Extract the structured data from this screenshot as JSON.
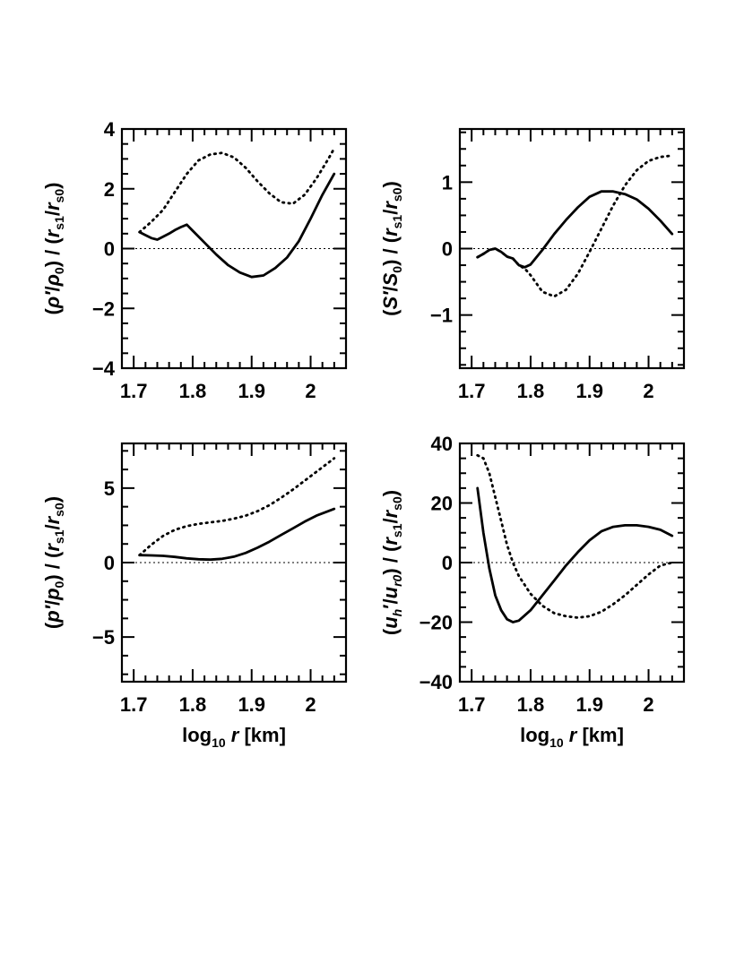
{
  "chart_data": [
    {
      "id": "density",
      "type": "line",
      "ylabel": "(ρ′/ρ₀) / (r_s1/r_s0)",
      "ylabel_parts": {
        "open": "(",
        "num": "ρ′",
        "slash": "/",
        "den": "ρ",
        "den_sub": "0",
        "close": ")",
        "mid": " / ",
        "r1": "r",
        "r1_sub": "s1",
        "r0": "r",
        "r0_sub": "s0"
      },
      "xlabel": "",
      "xlim": [
        1.68,
        2.06
      ],
      "ylim": [
        -4,
        4
      ],
      "xticks": [
        1.7,
        1.8,
        1.9,
        2.0
      ],
      "xtick_labels": [
        "1.7",
        "1.8",
        "1.9",
        "2"
      ],
      "yticks": [
        -4,
        -2,
        0,
        2,
        4
      ],
      "ytick_labels": [
        "−4",
        "−2",
        "0",
        "2",
        "4"
      ],
      "series": [
        {
          "name": "solid",
          "style": "solid",
          "x": [
            1.71,
            1.72,
            1.73,
            1.74,
            1.75,
            1.76,
            1.77,
            1.78,
            1.79,
            1.8,
            1.82,
            1.84,
            1.86,
            1.88,
            1.9,
            1.92,
            1.94,
            1.96,
            1.98,
            2.0,
            2.02,
            2.04
          ],
          "y": [
            0.55,
            0.45,
            0.35,
            0.3,
            0.4,
            0.5,
            0.62,
            0.72,
            0.8,
            0.6,
            0.2,
            -0.2,
            -0.55,
            -0.8,
            -0.95,
            -0.9,
            -0.65,
            -0.3,
            0.25,
            1.0,
            1.8,
            2.5
          ]
        },
        {
          "name": "dotted",
          "style": "dotted",
          "x": [
            1.71,
            1.73,
            1.75,
            1.77,
            1.79,
            1.81,
            1.83,
            1.85,
            1.87,
            1.89,
            1.91,
            1.93,
            1.95,
            1.97,
            1.99,
            2.01,
            2.03,
            2.04
          ],
          "y": [
            0.55,
            0.9,
            1.3,
            1.9,
            2.5,
            2.95,
            3.15,
            3.2,
            3.05,
            2.7,
            2.25,
            1.85,
            1.55,
            1.5,
            1.8,
            2.35,
            3.0,
            3.35
          ]
        }
      ]
    },
    {
      "id": "entropy",
      "type": "line",
      "ylabel": "(S′/S₀) / (r_s1/r_s0)",
      "ylabel_parts": {
        "open": "(",
        "num": "S′",
        "slash": "/",
        "den": "S",
        "den_sub": "0",
        "close": ")",
        "mid": " / ",
        "r1": "r",
        "r1_sub": "s1",
        "r0": "r",
        "r0_sub": "s0"
      },
      "xlabel": "",
      "xlim": [
        1.68,
        2.06
      ],
      "ylim": [
        -1.8,
        1.8
      ],
      "xticks": [
        1.7,
        1.8,
        1.9,
        2.0
      ],
      "xtick_labels": [
        "1.7",
        "1.8",
        "1.9",
        "2"
      ],
      "yticks": [
        -1,
        0,
        1
      ],
      "ytick_labels": [
        "−1",
        "0",
        "1"
      ],
      "series": [
        {
          "name": "solid",
          "style": "solid",
          "x": [
            1.71,
            1.72,
            1.73,
            1.74,
            1.75,
            1.76,
            1.77,
            1.78,
            1.79,
            1.8,
            1.82,
            1.84,
            1.86,
            1.88,
            1.9,
            1.92,
            1.94,
            1.96,
            1.98,
            2.0,
            2.02,
            2.04
          ],
          "y": [
            -0.13,
            -0.08,
            -0.02,
            0.0,
            -0.05,
            -0.12,
            -0.15,
            -0.25,
            -0.28,
            -0.24,
            -0.02,
            0.22,
            0.43,
            0.62,
            0.78,
            0.86,
            0.86,
            0.82,
            0.74,
            0.6,
            0.42,
            0.22
          ]
        },
        {
          "name": "dotted",
          "style": "dotted",
          "x": [
            1.71,
            1.72,
            1.73,
            1.74,
            1.75,
            1.76,
            1.77,
            1.78,
            1.79,
            1.8,
            1.82,
            1.84,
            1.86,
            1.88,
            1.9,
            1.92,
            1.94,
            1.96,
            1.98,
            2.0,
            2.02,
            2.04
          ],
          "y": [
            -0.13,
            -0.08,
            -0.02,
            0.0,
            -0.05,
            -0.12,
            -0.15,
            -0.25,
            -0.3,
            -0.4,
            -0.65,
            -0.72,
            -0.62,
            -0.38,
            -0.05,
            0.3,
            0.65,
            0.95,
            1.18,
            1.32,
            1.38,
            1.4
          ]
        }
      ]
    },
    {
      "id": "pressure",
      "type": "line",
      "ylabel": "(p′/p₀) / (r_s1/r_s0)",
      "ylabel_parts": {
        "open": "(",
        "num": "p′",
        "slash": "/",
        "den": "p",
        "den_sub": "0",
        "close": ")",
        "mid": " / ",
        "r1": "r",
        "r1_sub": "s1",
        "r0": "r",
        "r0_sub": "s0"
      },
      "xlabel": "log₁₀ r [km]",
      "xlabel_parts": {
        "log": "log",
        "log_sub": "10",
        "var": "r",
        "unit": "[km]"
      },
      "xlim": [
        1.68,
        2.06
      ],
      "ylim": [
        -8,
        8
      ],
      "xticks": [
        1.7,
        1.8,
        1.9,
        2.0
      ],
      "xtick_labels": [
        "1.7",
        "1.8",
        "1.9",
        "2"
      ],
      "yticks": [
        -5,
        0,
        5
      ],
      "ytick_labels": [
        "−5",
        "0",
        "5"
      ],
      "series": [
        {
          "name": "solid",
          "style": "solid",
          "x": [
            1.71,
            1.73,
            1.75,
            1.77,
            1.79,
            1.81,
            1.83,
            1.85,
            1.87,
            1.89,
            1.91,
            1.93,
            1.95,
            1.97,
            1.99,
            2.01,
            2.03,
            2.04
          ],
          "y": [
            0.5,
            0.48,
            0.45,
            0.38,
            0.28,
            0.22,
            0.2,
            0.25,
            0.4,
            0.65,
            1.0,
            1.4,
            1.85,
            2.3,
            2.75,
            3.15,
            3.45,
            3.6
          ]
        },
        {
          "name": "dotted",
          "style": "dotted",
          "x": [
            1.71,
            1.73,
            1.75,
            1.77,
            1.79,
            1.81,
            1.83,
            1.85,
            1.87,
            1.89,
            1.91,
            1.93,
            1.95,
            1.97,
            1.99,
            2.01,
            2.03,
            2.04
          ],
          "y": [
            0.5,
            1.2,
            1.8,
            2.2,
            2.45,
            2.6,
            2.7,
            2.8,
            2.95,
            3.15,
            3.45,
            3.85,
            4.35,
            4.9,
            5.5,
            6.1,
            6.7,
            7.0
          ]
        }
      ]
    },
    {
      "id": "velocity",
      "type": "line",
      "ylabel": "(u_h′/u_r0) / (r_s1/r_s0)",
      "ylabel_parts": {
        "open": "(",
        "num": "u",
        "num_sub": "h",
        "prime": "′",
        "slash": "/",
        "den": "u",
        "den_sub": "r0",
        "close": ")",
        "mid": " / ",
        "r1": "r",
        "r1_sub": "s1",
        "r0": "r",
        "r0_sub": "s0"
      },
      "xlabel": "log₁₀ r [km]",
      "xlabel_parts": {
        "log": "log",
        "log_sub": "10",
        "var": "r",
        "unit": "[km]"
      },
      "xlim": [
        1.68,
        2.06
      ],
      "ylim": [
        -40,
        40
      ],
      "xticks": [
        1.7,
        1.8,
        1.9,
        2.0
      ],
      "xtick_labels": [
        "1.7",
        "1.8",
        "1.9",
        "2"
      ],
      "yticks": [
        -40,
        -20,
        0,
        20,
        40
      ],
      "ytick_labels": [
        "−40",
        "−20",
        "0",
        "20",
        "40"
      ],
      "series": [
        {
          "name": "solid",
          "style": "solid",
          "x": [
            1.71,
            1.72,
            1.73,
            1.74,
            1.75,
            1.76,
            1.77,
            1.78,
            1.8,
            1.82,
            1.84,
            1.86,
            1.88,
            1.9,
            1.92,
            1.94,
            1.96,
            1.98,
            2.0,
            2.02,
            2.04
          ],
          "y": [
            25,
            10,
            -2,
            -11,
            -16,
            -19,
            -20,
            -19.5,
            -16,
            -11,
            -6,
            -1,
            3.5,
            7.5,
            10.5,
            12,
            12.5,
            12.5,
            12,
            11,
            9
          ]
        },
        {
          "name": "dotted",
          "style": "dotted",
          "x": [
            1.71,
            1.72,
            1.73,
            1.74,
            1.75,
            1.76,
            1.77,
            1.78,
            1.8,
            1.82,
            1.84,
            1.86,
            1.88,
            1.9,
            1.92,
            1.94,
            1.96,
            1.98,
            2.0,
            2.02,
            2.04
          ],
          "y": [
            36,
            35,
            30,
            22,
            14,
            6,
            0,
            -4.5,
            -10.5,
            -14.5,
            -17,
            -18,
            -18.5,
            -18,
            -16.5,
            -14,
            -11,
            -7.5,
            -4,
            -1,
            0
          ]
        }
      ]
    }
  ]
}
